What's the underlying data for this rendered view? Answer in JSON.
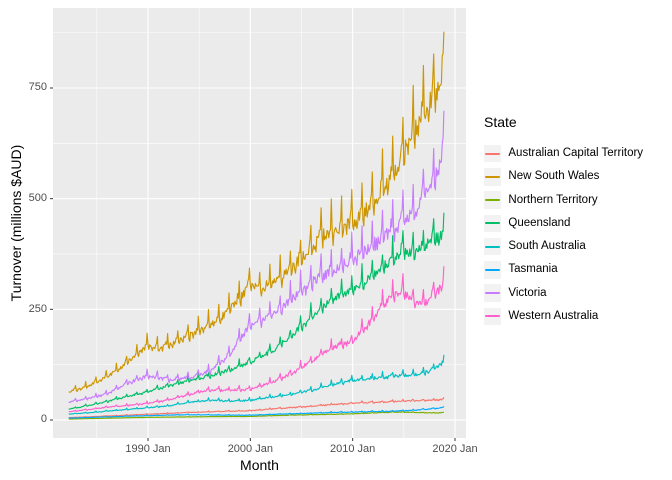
{
  "figure": {
    "y_axis": {
      "label": "Turnover (millions $AUD)",
      "ticks": [
        "0",
        "250",
        "500",
        "750"
      ]
    },
    "x_axis": {
      "label": "Month",
      "ticks": [
        "1990 Jan",
        "2000 Jan",
        "2010 Jan",
        "2020 Jan"
      ]
    },
    "legend": {
      "title": "State",
      "entries": [
        {
          "label": "Australian Capital Territory",
          "color": "#F8766D"
        },
        {
          "label": "New South Wales",
          "color": "#CD9600"
        },
        {
          "label": "Northern Territory",
          "color": "#7CAE00"
        },
        {
          "label": "Queensland",
          "color": "#00BE67"
        },
        {
          "label": "South Australia",
          "color": "#00BFC4"
        },
        {
          "label": "Tasmania",
          "color": "#00A9FF"
        },
        {
          "label": "Victoria",
          "color": "#C77CFF"
        },
        {
          "label": "Western Australia",
          "color": "#FF61CC"
        }
      ]
    },
    "theme": {
      "panel_background": "#EBEBEB",
      "gridline_color": "#FFFFFF",
      "tick_mark_color": "#333333",
      "tick_text_color": "#4D4D4D",
      "legend_key_background": "#F2F2F2"
    }
  },
  "chart_data": {
    "type": "line",
    "title": "",
    "xlabel": "Month",
    "ylabel": "Turnover (millions $AUD)",
    "x_unit": "monthly",
    "x_start": "1982 Apr",
    "x_end": "2018 Dec",
    "xlim": [
      1980.717,
      2021.075
    ],
    "ylim": [
      -40.7,
      930.7
    ],
    "x_major_ticks": [
      1990,
      2000,
      2010,
      2020
    ],
    "x_minor_ticks": [
      1985,
      1995,
      2005,
      2015
    ],
    "x_tick_labels": [
      "1990 Jan",
      "2000 Jan",
      "2010 Jan",
      "2020 Jan"
    ],
    "y_major_ticks": [
      0,
      250,
      500,
      750
    ],
    "y_minor_ticks": [
      125,
      375,
      625,
      875
    ],
    "grid": true,
    "legend_position": "right",
    "legend_title": "State",
    "seasonal_factors": [
      0.97,
      0.94,
      1.0,
      0.98,
      0.99,
      0.96,
      0.99,
      1.0,
      0.99,
      1.02,
      1.03,
      1.14
    ],
    "noise_sd": 0.03,
    "series": [
      {
        "name": "Australian Capital Territory",
        "color": "#F8766D",
        "seasonal_strength": 0.55,
        "anchors": [
          [
            1982,
            5
          ],
          [
            1986,
            9
          ],
          [
            1990,
            13
          ],
          [
            1994,
            17
          ],
          [
            1998,
            20
          ],
          [
            2000,
            21
          ],
          [
            2002,
            25
          ],
          [
            2004,
            28
          ],
          [
            2006,
            31
          ],
          [
            2008,
            35
          ],
          [
            2010,
            38
          ],
          [
            2012,
            40
          ],
          [
            2014,
            42
          ],
          [
            2016,
            44
          ],
          [
            2018,
            45
          ],
          [
            2019,
            47
          ]
        ]
      },
      {
        "name": "New South Wales",
        "color": "#CD9600",
        "seasonal_strength": 0.95,
        "anchors": [
          [
            1982,
            62
          ],
          [
            1984,
            76
          ],
          [
            1986,
            98
          ],
          [
            1988,
            132
          ],
          [
            1990,
            170
          ],
          [
            1991,
            162
          ],
          [
            1993,
            180
          ],
          [
            1995,
            205
          ],
          [
            1997,
            232
          ],
          [
            1999,
            278
          ],
          [
            2000,
            310
          ],
          [
            2001,
            298
          ],
          [
            2003,
            325
          ],
          [
            2005,
            368
          ],
          [
            2007,
            420
          ],
          [
            2009,
            438
          ],
          [
            2010,
            452
          ],
          [
            2012,
            495
          ],
          [
            2014,
            560
          ],
          [
            2016,
            655
          ],
          [
            2018,
            745
          ],
          [
            2019,
            800
          ]
        ]
      },
      {
        "name": "Northern Territory",
        "color": "#7CAE00",
        "seasonal_strength": 0.5,
        "anchors": [
          [
            1982,
            2
          ],
          [
            1986,
            4
          ],
          [
            1990,
            6
          ],
          [
            1994,
            7
          ],
          [
            1998,
            8
          ],
          [
            2000,
            8
          ],
          [
            2004,
            11
          ],
          [
            2008,
            13
          ],
          [
            2010,
            14
          ],
          [
            2012,
            16
          ],
          [
            2014,
            18
          ],
          [
            2016,
            17
          ],
          [
            2018,
            16
          ],
          [
            2019,
            17
          ]
        ]
      },
      {
        "name": "Queensland",
        "color": "#00BE67",
        "seasonal_strength": 0.75,
        "anchors": [
          [
            1982,
            24
          ],
          [
            1984,
            32
          ],
          [
            1986,
            42
          ],
          [
            1988,
            54
          ],
          [
            1990,
            64
          ],
          [
            1992,
            78
          ],
          [
            1994,
            90
          ],
          [
            1996,
            100
          ],
          [
            1998,
            114
          ],
          [
            2000,
            132
          ],
          [
            2002,
            155
          ],
          [
            2004,
            190
          ],
          [
            2006,
            235
          ],
          [
            2008,
            278
          ],
          [
            2010,
            295
          ],
          [
            2012,
            330
          ],
          [
            2014,
            368
          ],
          [
            2015,
            388
          ],
          [
            2016,
            378
          ],
          [
            2017,
            400
          ],
          [
            2018,
            412
          ],
          [
            2019,
            428
          ]
        ]
      },
      {
        "name": "South Australia",
        "color": "#00BFC4",
        "seasonal_strength": 0.75,
        "anchors": [
          [
            1982,
            13
          ],
          [
            1984,
            16
          ],
          [
            1986,
            20
          ],
          [
            1988,
            24
          ],
          [
            1990,
            28
          ],
          [
            1992,
            32
          ],
          [
            1994,
            40
          ],
          [
            1996,
            45
          ],
          [
            1998,
            43
          ],
          [
            2000,
            45
          ],
          [
            2002,
            52
          ],
          [
            2004,
            58
          ],
          [
            2006,
            68
          ],
          [
            2008,
            80
          ],
          [
            2010,
            90
          ],
          [
            2012,
            95
          ],
          [
            2014,
            100
          ],
          [
            2016,
            102
          ],
          [
            2017,
            108
          ],
          [
            2018,
            118
          ],
          [
            2019,
            132
          ]
        ]
      },
      {
        "name": "Tasmania",
        "color": "#00A9FF",
        "seasonal_strength": 0.7,
        "anchors": [
          [
            1982,
            4
          ],
          [
            1986,
            7
          ],
          [
            1990,
            10
          ],
          [
            1994,
            12
          ],
          [
            1998,
            11
          ],
          [
            2000,
            11
          ],
          [
            2004,
            14
          ],
          [
            2008,
            17
          ],
          [
            2010,
            18
          ],
          [
            2012,
            19
          ],
          [
            2014,
            20
          ],
          [
            2016,
            22
          ],
          [
            2018,
            26
          ],
          [
            2019,
            28
          ]
        ]
      },
      {
        "name": "Victoria",
        "color": "#C77CFF",
        "seasonal_strength": 0.95,
        "anchors": [
          [
            1982,
            40
          ],
          [
            1984,
            48
          ],
          [
            1986,
            60
          ],
          [
            1988,
            84
          ],
          [
            1990,
            100
          ],
          [
            1992,
            92
          ],
          [
            1994,
            96
          ],
          [
            1996,
            110
          ],
          [
            1998,
            150
          ],
          [
            2000,
            218
          ],
          [
            2001,
            226
          ],
          [
            2003,
            256
          ],
          [
            2005,
            294
          ],
          [
            2007,
            330
          ],
          [
            2009,
            352
          ],
          [
            2010,
            366
          ],
          [
            2012,
            398
          ],
          [
            2014,
            438
          ],
          [
            2016,
            470
          ],
          [
            2018,
            560
          ],
          [
            2019,
            615
          ]
        ]
      },
      {
        "name": "Western Australia",
        "color": "#FF61CC",
        "seasonal_strength": 0.75,
        "anchors": [
          [
            1982,
            18
          ],
          [
            1984,
            23
          ],
          [
            1986,
            29
          ],
          [
            1988,
            33
          ],
          [
            1990,
            38
          ],
          [
            1992,
            45
          ],
          [
            1994,
            58
          ],
          [
            1996,
            68
          ],
          [
            1998,
            68
          ],
          [
            2000,
            70
          ],
          [
            2002,
            85
          ],
          [
            2004,
            105
          ],
          [
            2006,
            135
          ],
          [
            2008,
            165
          ],
          [
            2010,
            178
          ],
          [
            2012,
            230
          ],
          [
            2013,
            262
          ],
          [
            2014,
            285
          ],
          [
            2015,
            292
          ],
          [
            2016,
            268
          ],
          [
            2017,
            262
          ],
          [
            2018,
            290
          ],
          [
            2019,
            308
          ]
        ]
      }
    ]
  }
}
